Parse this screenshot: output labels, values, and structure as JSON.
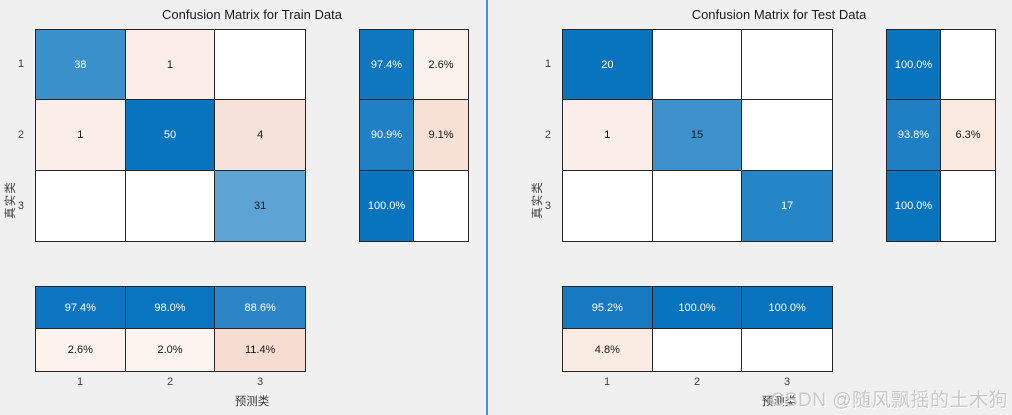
{
  "background": "#f0f0f0",
  "border_color": "#262626",
  "separator_color": "#4a90d5",
  "accent_blue": "#0874be",
  "accent_pink": "#f6e2d8",
  "watermark": "CSDN @随风飘摇的土木狗",
  "chart_data": [
    {
      "type": "heatmap",
      "title": "Confusion Matrix for Train Data",
      "xlabel": "预测类",
      "ylabel": "真实类",
      "classes": [
        "1",
        "2",
        "3"
      ],
      "matrix": [
        [
          38,
          1,
          0
        ],
        [
          1,
          50,
          4
        ],
        [
          0,
          0,
          31
        ]
      ],
      "row_summary_pct": [
        [
          97.4,
          2.6
        ],
        [
          90.9,
          9.1
        ],
        [
          100.0,
          null
        ]
      ],
      "col_summary_pct": [
        [
          97.4,
          98.0,
          88.6
        ],
        [
          2.6,
          2.0,
          11.4
        ]
      ],
      "legend_position": "none",
      "grid": "cell-borders"
    },
    {
      "type": "heatmap",
      "title": "Confusion Matrix for Test Data",
      "xlabel": "预测类",
      "ylabel": "真实类",
      "classes": [
        "1",
        "2",
        "3"
      ],
      "matrix": [
        [
          20,
          0,
          0
        ],
        [
          1,
          15,
          0
        ],
        [
          0,
          0,
          17
        ]
      ],
      "row_summary_pct": [
        [
          100.0,
          null
        ],
        [
          93.8,
          6.3
        ],
        [
          100.0,
          null
        ]
      ],
      "col_summary_pct": [
        [
          95.2,
          100.0,
          100.0
        ],
        [
          4.8,
          null,
          null
        ]
      ],
      "legend_position": "none",
      "grid": "cell-borders"
    }
  ],
  "panels": [
    {
      "title": "Confusion Matrix for Train Data",
      "xlabel": "预测类",
      "ylabel": "真实类",
      "row_ticks": [
        "1",
        "2",
        "3"
      ],
      "col_ticks": [
        "1",
        "2",
        "3"
      ],
      "matrix": [
        [
          {
            "v": "38",
            "bg": "#3a90ca",
            "fg": "#ffffff"
          },
          {
            "v": "1",
            "bg": "#fbeee8",
            "fg": "#1a1a1a"
          },
          {
            "v": "",
            "bg": "#ffffff",
            "fg": "#1a1a1a"
          }
        ],
        [
          {
            "v": "1",
            "bg": "#fbeee8",
            "fg": "#1a1a1a"
          },
          {
            "v": "50",
            "bg": "#0874be",
            "fg": "#ffffff"
          },
          {
            "v": "4",
            "bg": "#f6e2d8",
            "fg": "#1a1a1a"
          }
        ],
        [
          {
            "v": "",
            "bg": "#ffffff",
            "fg": "#1a1a1a"
          },
          {
            "v": "",
            "bg": "#ffffff",
            "fg": "#1a1a1a"
          },
          {
            "v": "31",
            "bg": "#5da4d5",
            "fg": "#1a1a1a"
          }
        ]
      ],
      "row_summary": [
        [
          {
            "v": "97.4%",
            "bg": "#0e77c0",
            "fg": "#ffffff"
          },
          {
            "v": "2.6%",
            "bg": "#fcf2ec",
            "fg": "#1a1a1a"
          }
        ],
        [
          {
            "v": "90.9%",
            "bg": "#2080c5",
            "fg": "#ffffff"
          },
          {
            "v": "9.1%",
            "bg": "#f7e1d5",
            "fg": "#1a1a1a"
          }
        ],
        [
          {
            "v": "100.0%",
            "bg": "#0874be",
            "fg": "#ffffff"
          },
          {
            "v": "",
            "bg": "#ffffff",
            "fg": "#1a1a1a"
          }
        ]
      ],
      "col_summary": [
        [
          {
            "v": "97.4%",
            "bg": "#0d76c0",
            "fg": "#ffffff"
          },
          {
            "v": "98.0%",
            "bg": "#0a75bf",
            "fg": "#ffffff"
          },
          {
            "v": "88.6%",
            "bg": "#2c85c7",
            "fg": "#ffffff"
          }
        ],
        [
          {
            "v": "2.6%",
            "bg": "#fdf2ed",
            "fg": "#1a1a1a"
          },
          {
            "v": "2.0%",
            "bg": "#fdf4ef",
            "fg": "#1a1a1a"
          },
          {
            "v": "11.4%",
            "bg": "#f7ddd1",
            "fg": "#1a1a1a"
          }
        ]
      ]
    },
    {
      "title": "Confusion Matrix for Test Data",
      "xlabel": "预测类",
      "ylabel": "真实类",
      "row_ticks": [
        "1",
        "2",
        "3"
      ],
      "col_ticks": [
        "1",
        "2",
        "3"
      ],
      "matrix": [
        [
          {
            "v": "20",
            "bg": "#0874be",
            "fg": "#ffffff"
          },
          {
            "v": "",
            "bg": "#ffffff",
            "fg": "#1a1a1a"
          },
          {
            "v": "",
            "bg": "#ffffff",
            "fg": "#1a1a1a"
          }
        ],
        [
          {
            "v": "1",
            "bg": "#fbeee8",
            "fg": "#1a1a1a"
          },
          {
            "v": "15",
            "bg": "#3d92cb",
            "fg": "#1a1a1a"
          },
          {
            "v": "",
            "bg": "#ffffff",
            "fg": "#1a1a1a"
          }
        ],
        [
          {
            "v": "",
            "bg": "#ffffff",
            "fg": "#1a1a1a"
          },
          {
            "v": "",
            "bg": "#ffffff",
            "fg": "#1a1a1a"
          },
          {
            "v": "17",
            "bg": "#2485c7",
            "fg": "#ffffff"
          }
        ]
      ],
      "row_summary": [
        [
          {
            "v": "100.0%",
            "bg": "#0874be",
            "fg": "#ffffff"
          },
          {
            "v": "",
            "bg": "#ffffff",
            "fg": "#1a1a1a"
          }
        ],
        [
          {
            "v": "93.8%",
            "bg": "#1e7fc4",
            "fg": "#ffffff"
          },
          {
            "v": "6.3%",
            "bg": "#faeae0",
            "fg": "#1a1a1a"
          }
        ],
        [
          {
            "v": "100.0%",
            "bg": "#0874be",
            "fg": "#ffffff"
          },
          {
            "v": "",
            "bg": "#ffffff",
            "fg": "#1a1a1a"
          }
        ]
      ],
      "col_summary": [
        [
          {
            "v": "95.2%",
            "bg": "#177ac1",
            "fg": "#ffffff"
          },
          {
            "v": "100.0%",
            "bg": "#0874be",
            "fg": "#ffffff"
          },
          {
            "v": "100.0%",
            "bg": "#0874be",
            "fg": "#ffffff"
          }
        ],
        [
          {
            "v": "4.8%",
            "bg": "#fbece3",
            "fg": "#1a1a1a"
          },
          {
            "v": "",
            "bg": "#ffffff",
            "fg": "#1a1a1a"
          },
          {
            "v": "",
            "bg": "#ffffff",
            "fg": "#1a1a1a"
          }
        ]
      ]
    }
  ]
}
